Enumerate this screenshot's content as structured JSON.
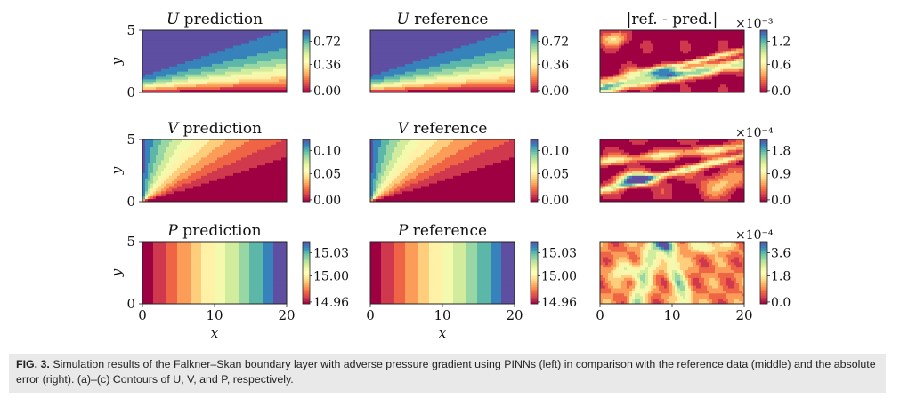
{
  "figure": {
    "panels": [
      {
        "title": "U prediction",
        "cbar": [
          "0.72",
          "0.36",
          "0.00"
        ],
        "mult": "",
        "field": "U"
      },
      {
        "title": "U reference",
        "cbar": [
          "0.72",
          "0.36",
          "0.00"
        ],
        "mult": "",
        "field": "U"
      },
      {
        "title": "|ref. - pred.|",
        "cbar": [
          "1.2",
          "0.6",
          "0.0"
        ],
        "mult": "×10⁻³",
        "field": "EU"
      },
      {
        "title": "V prediction",
        "cbar": [
          "0.10",
          "0.05",
          "0.00"
        ],
        "mult": "",
        "field": "V"
      },
      {
        "title": "V reference",
        "cbar": [
          "0.10",
          "0.05",
          "0.00"
        ],
        "mult": "",
        "field": "V"
      },
      {
        "title": "",
        "cbar": [
          "1.8",
          "0.9",
          "0.0"
        ],
        "mult": "×10⁻⁴",
        "field": "EV"
      },
      {
        "title": "P prediction",
        "cbar": [
          "15.03",
          "15.00",
          "14.96"
        ],
        "mult": "",
        "field": "P"
      },
      {
        "title": "P reference",
        "cbar": [
          "15.03",
          "15.00",
          "14.96"
        ],
        "mult": "",
        "field": "P"
      },
      {
        "title": "",
        "cbar": [
          "3.6",
          "1.8",
          "0.0"
        ],
        "mult": "×10⁻⁴",
        "field": "EP"
      }
    ],
    "y_axis": {
      "label": "y",
      "ticks": [
        "5",
        "0"
      ]
    },
    "x_axis": {
      "label": "x",
      "ticks": [
        "0",
        "10",
        "20"
      ]
    }
  },
  "caption": {
    "label": "FIG. 3.",
    "text": "Simulation results of the Falkner–Skan boundary layer with adverse pressure gradient using PINNs (left) in comparison with the reference data (middle) and the absolute error (right). (a)–(c) Contours of U, V, and P, respectively."
  },
  "chart_data": {
    "type": "heatmap",
    "title": "Falkner–Skan boundary layer with adverse pressure gradient",
    "xlabel": "x",
    "ylabel": "y",
    "xlim": [
      0,
      20
    ],
    "ylim": [
      0,
      5
    ],
    "colormap": "Spectral",
    "rows": [
      {
        "field": "U",
        "colorbar_ticks": [
          0.0,
          0.36,
          0.72
        ],
        "error_colorbar_ticks": [
          0.0,
          0.6,
          1.2
        ],
        "error_scale": "1e-3"
      },
      {
        "field": "V",
        "colorbar_ticks": [
          0.0,
          0.05,
          0.1
        ],
        "error_colorbar_ticks": [
          0.0,
          0.9,
          1.8
        ],
        "error_scale": "1e-4"
      },
      {
        "field": "P",
        "colorbar_ticks": [
          14.96,
          15.0,
          15.03
        ],
        "error_colorbar_ticks": [
          0.0,
          1.8,
          3.6
        ],
        "error_scale": "1e-4"
      }
    ],
    "columns": [
      "prediction",
      "reference",
      "|ref. - pred.|"
    ]
  }
}
